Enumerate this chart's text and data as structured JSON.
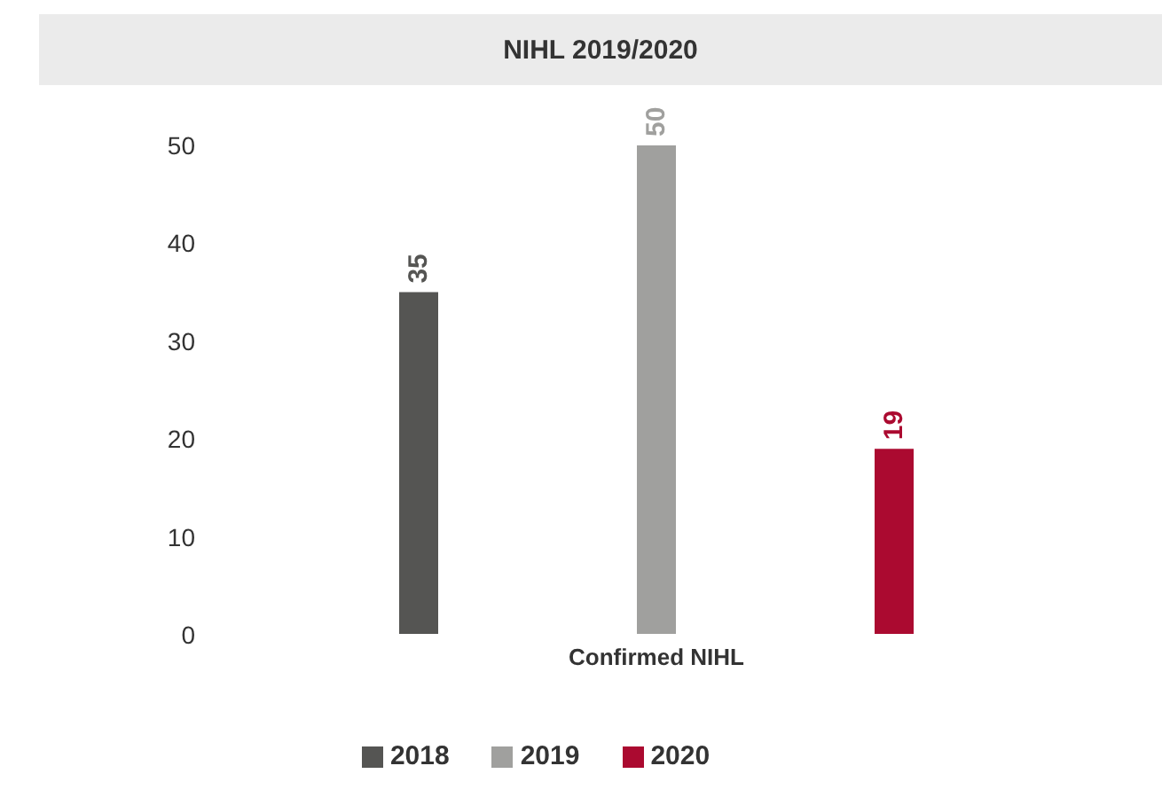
{
  "chart_data": {
    "type": "bar",
    "title": "NIHL 2019/2020",
    "categories": [
      "Confirmed NIHL"
    ],
    "series": [
      {
        "name": "2018",
        "color": "#555553",
        "values": [
          35
        ]
      },
      {
        "name": "2019",
        "color": "#a0a09e",
        "values": [
          50
        ]
      },
      {
        "name": "2020",
        "color": "#ab0a30",
        "values": [
          19
        ]
      }
    ],
    "ylim": [
      0,
      50
    ],
    "yticks": [
      0,
      10,
      20,
      30,
      40,
      50
    ],
    "grid": false,
    "legend": "bottom",
    "data_labels": true
  }
}
